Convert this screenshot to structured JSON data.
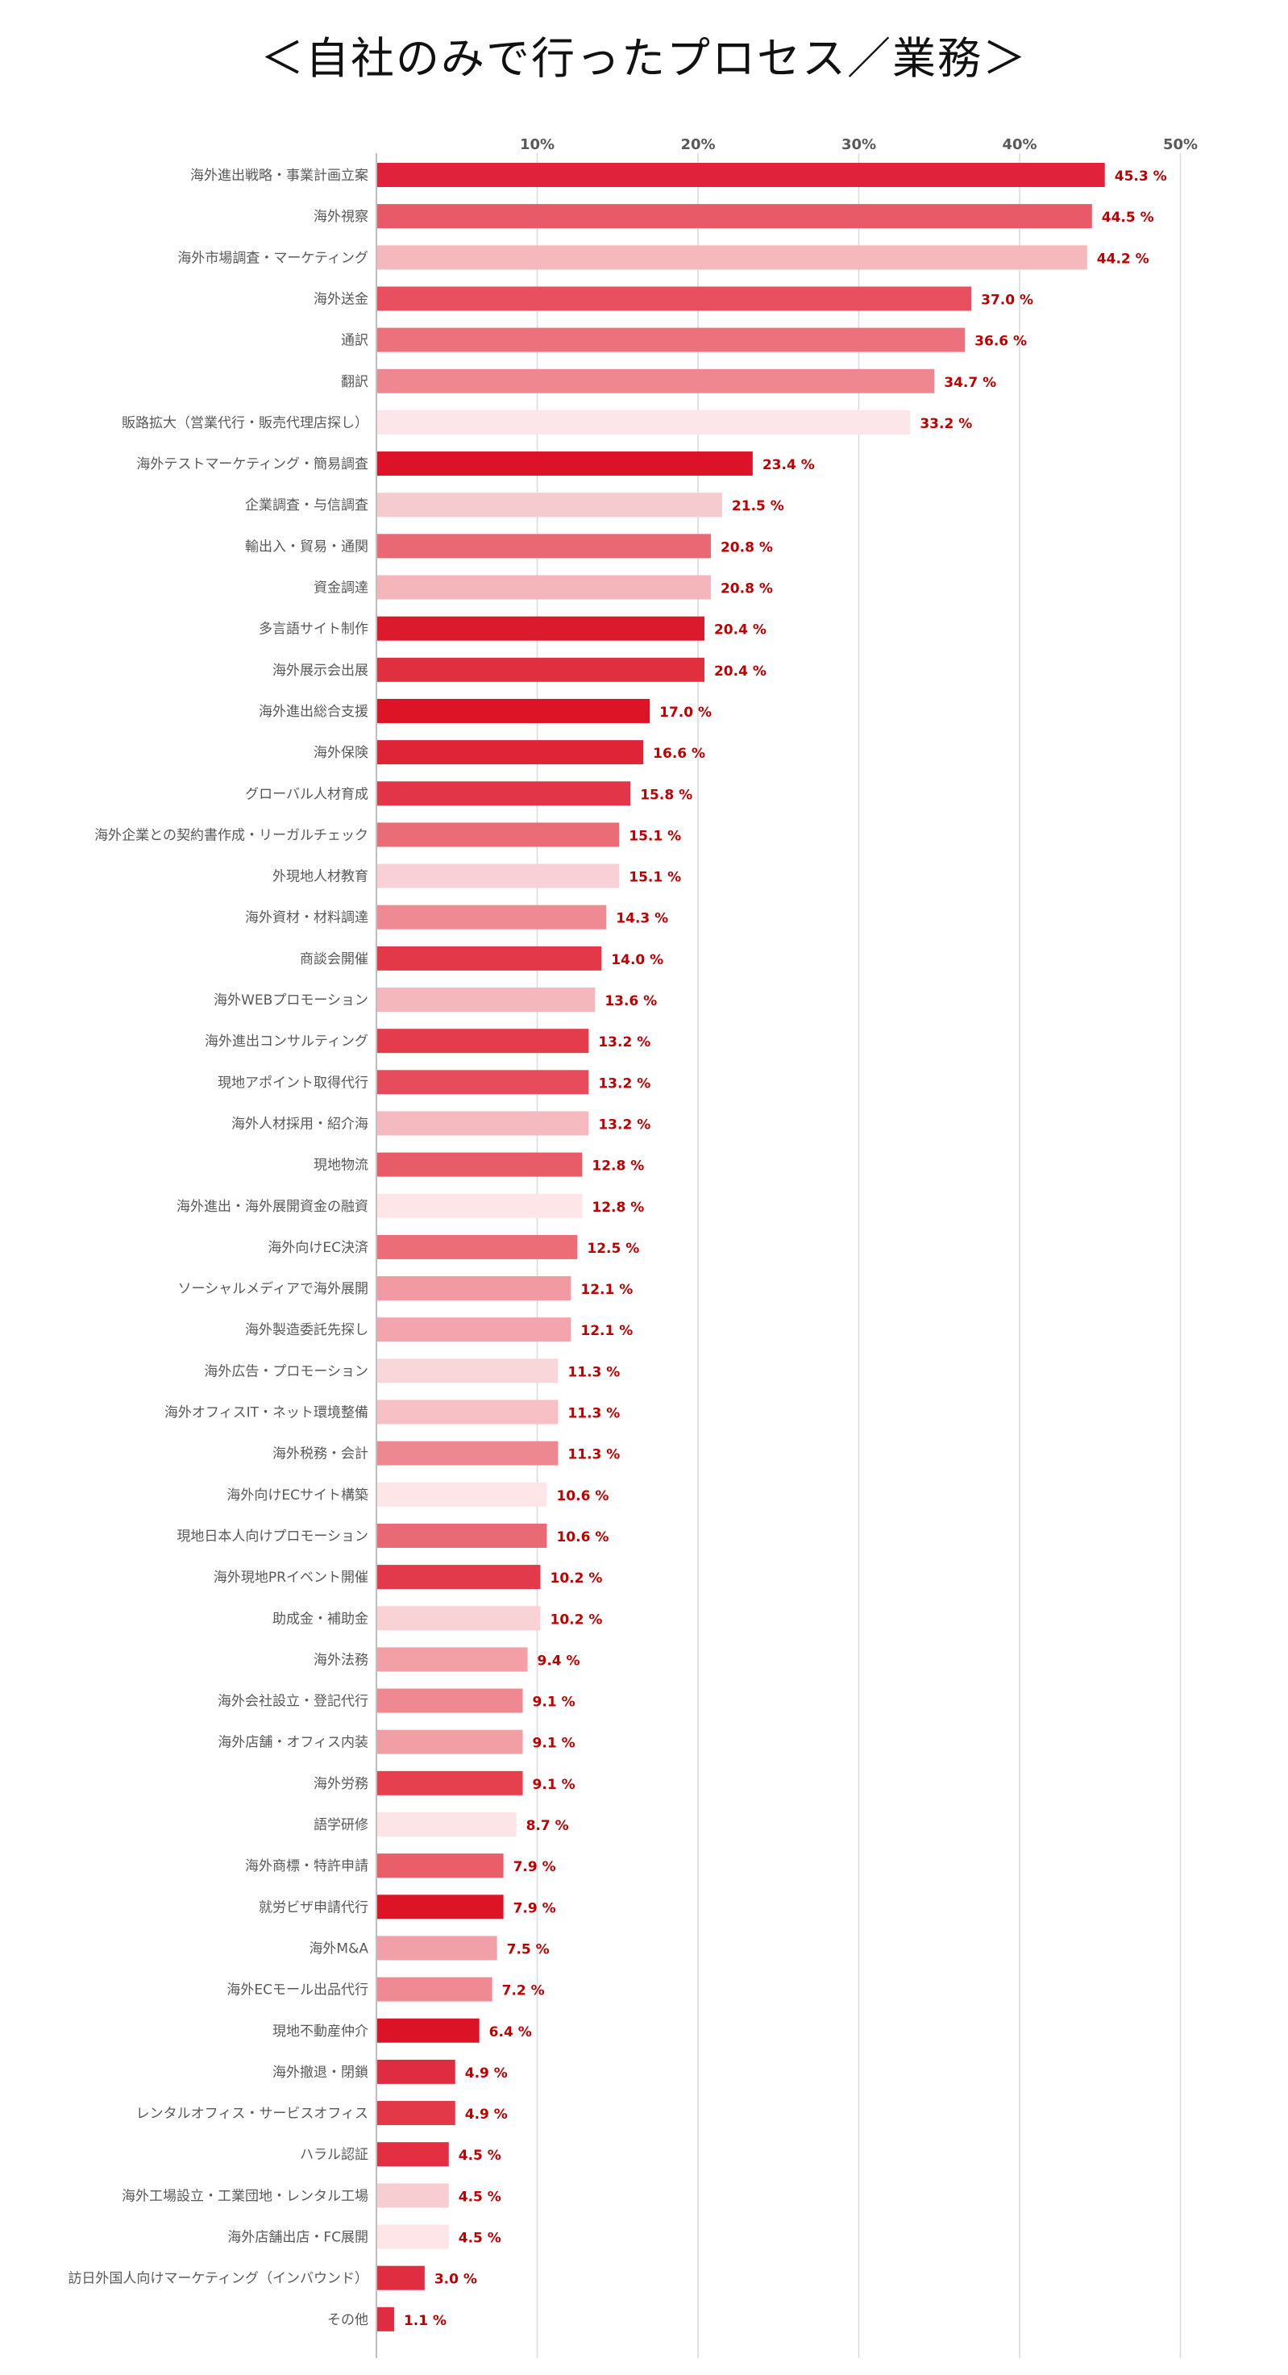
{
  "chart_data": {
    "type": "bar",
    "orientation": "horizontal",
    "title": "＜自社のみで行ったプロセス／業務＞",
    "xlim": [
      0,
      50
    ],
    "xticks": [
      10,
      20,
      30,
      40,
      50
    ],
    "tick_suffix": "%",
    "value_suffix": " %",
    "grid": true,
    "categories": [
      "海外進出戦略・事業計画立案",
      "海外視察",
      "海外市場調査・マーケティング",
      "海外送金",
      "通訳",
      "翻訳",
      "販路拡大（営業代行・販売代理店探し）",
      "海外テストマーケティング・簡易調査",
      "企業調査・与信調査",
      "輸出入・貿易・通関",
      "資金調達",
      "多言語サイト制作",
      "海外展示会出展",
      "海外進出総合支援",
      "海外保険",
      "グローバル人材育成",
      "海外企業との契約書作成・リーガルチェック",
      "外現地人材教育",
      "海外資材・材料調達",
      "商談会開催",
      "海外WEBプロモーション",
      "海外進出コンサルティング",
      "現地アポイント取得代行",
      "海外人材採用・紹介海",
      "現地物流",
      "海外進出・海外展開資金の融資",
      "海外向けEC決済",
      "ソーシャルメディアで海外展開",
      "海外製造委託先探し",
      "海外広告・プロモーション",
      "海外オフィスIT・ネット環境整備",
      "海外税務・会計",
      "海外向けECサイト構築",
      "現地日本人向けプロモーション",
      "海外現地PRイベント開催",
      "助成金・補助金",
      "海外法務",
      "海外会社設立・登記代行",
      "海外店舗・オフィス内装",
      "海外労務",
      "語学研修",
      "海外商標・特許申請",
      "就労ビザ申請代行",
      "海外M&A",
      "海外ECモール出品代行",
      "現地不動産仲介",
      "海外撤退・閉鎖",
      "レンタルオフィス・サービスオフィス",
      "ハラル認証",
      "海外工場設立・工業団地・レンタル工場",
      "海外店舗出店・FC展開",
      "訪日外国人向けマーケティング（インバウンド）",
      "その他"
    ],
    "values": [
      45.3,
      44.5,
      44.2,
      37.0,
      36.6,
      34.7,
      33.2,
      23.4,
      21.5,
      20.8,
      20.8,
      20.4,
      20.4,
      17.0,
      16.6,
      15.8,
      15.1,
      15.1,
      14.3,
      14.0,
      13.6,
      13.2,
      13.2,
      13.2,
      12.8,
      12.8,
      12.5,
      12.1,
      12.1,
      11.3,
      11.3,
      11.3,
      10.6,
      10.6,
      10.2,
      10.2,
      9.4,
      9.1,
      9.1,
      9.1,
      8.7,
      7.9,
      7.9,
      7.5,
      7.2,
      6.4,
      4.9,
      4.9,
      4.5,
      4.5,
      4.5,
      3.0,
      1.1
    ],
    "colors": [
      "#e0223a",
      "#e85a68",
      "#f4b8bd",
      "#e8505f",
      "#ec717c",
      "#ee8790",
      "#fde6e9",
      "#dd1228",
      "#f6cbd0",
      "#ea6874",
      "#f4b5bb",
      "#dc1a2e",
      "#e03040",
      "#dc1426",
      "#e02438",
      "#e23648",
      "#ea6c76",
      "#f8d0d5",
      "#ef8a92",
      "#e23848",
      "#f4b7bc",
      "#e43c4c",
      "#e64c5c",
      "#f5bac0",
      "#e85c68",
      "#fde5e8",
      "#ec6c78",
      "#f29aa2",
      "#f4a4ac",
      "#f9d6da",
      "#f6c0c5",
      "#ee8890",
      "#fde5e8",
      "#e96a74",
      "#e23a4a",
      "#f9d2d6",
      "#f2a0a6",
      "#ef8890",
      "#f29ea5",
      "#e6404e",
      "#fde4e7",
      "#ea5e6a",
      "#dc1426",
      "#f0a0a6",
      "#ef8a92",
      "#dc1226",
      "#e02c40",
      "#e23848",
      "#e23042",
      "#f8cdd2",
      "#fde5e8",
      "#e02e40",
      "#e02c40"
    ]
  }
}
